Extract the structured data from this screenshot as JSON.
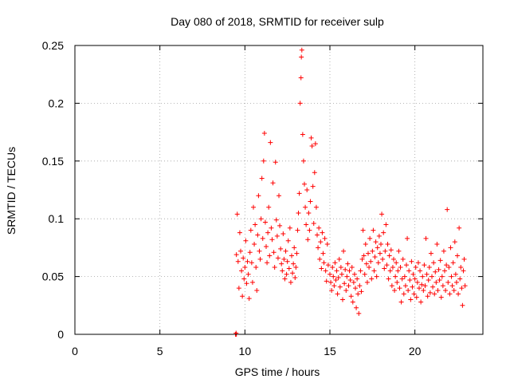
{
  "chart_data": {
    "type": "scatter",
    "title": "Day 080 of 2018, SRMTID for receiver sulp",
    "xlabel": "GPS time / hours",
    "ylabel": "SRMTID / TECUs",
    "xlim": [
      0,
      24
    ],
    "ylim": [
      0,
      0.25
    ],
    "xticks": [
      0,
      5,
      10,
      15,
      20
    ],
    "yticks": [
      0,
      0.05,
      0.1,
      0.15,
      0.2,
      0.25
    ],
    "xtick_labels": [
      "0",
      "5",
      "10",
      "15",
      "20"
    ],
    "ytick_labels": [
      "0",
      "0.05",
      "0.1",
      "0.15",
      "0.2",
      "0.25"
    ],
    "grid": true,
    "marker": "+",
    "series": [
      {
        "name": "SRMTID",
        "color": "#ff0000",
        "points": [
          [
            9.45,
            0.0
          ],
          [
            9.48,
            0.001
          ],
          [
            9.5,
            0.0
          ],
          [
            9.5,
            0.069
          ],
          [
            9.55,
            0.104
          ],
          [
            9.6,
            0.063
          ],
          [
            9.65,
            0.04
          ],
          [
            9.7,
            0.088
          ],
          [
            9.75,
            0.072
          ],
          [
            9.8,
            0.055
          ],
          [
            9.85,
            0.033
          ],
          [
            9.9,
            0.066
          ],
          [
            9.95,
            0.048
          ],
          [
            10.0,
            0.058
          ],
          [
            10.05,
            0.081
          ],
          [
            10.1,
            0.044
          ],
          [
            10.15,
            0.063
          ],
          [
            10.2,
            0.052
          ],
          [
            10.25,
            0.031
          ],
          [
            10.3,
            0.071
          ],
          [
            10.35,
            0.09
          ],
          [
            10.4,
            0.062
          ],
          [
            10.45,
            0.045
          ],
          [
            10.5,
            0.11
          ],
          [
            10.55,
            0.078
          ],
          [
            10.6,
            0.095
          ],
          [
            10.65,
            0.058
          ],
          [
            10.7,
            0.038
          ],
          [
            10.75,
            0.086
          ],
          [
            10.8,
            0.12
          ],
          [
            10.85,
            0.072
          ],
          [
            10.9,
            0.065
          ],
          [
            10.95,
            0.1
          ],
          [
            11.0,
            0.135
          ],
          [
            11.05,
            0.083
          ],
          [
            11.1,
            0.15
          ],
          [
            11.15,
            0.174
          ],
          [
            11.2,
            0.097
          ],
          [
            11.25,
            0.076
          ],
          [
            11.3,
            0.062
          ],
          [
            11.35,
            0.088
          ],
          [
            11.4,
            0.11
          ],
          [
            11.45,
            0.068
          ],
          [
            11.5,
            0.166
          ],
          [
            11.55,
            0.092
          ],
          [
            11.6,
            0.082
          ],
          [
            11.65,
            0.131
          ],
          [
            11.7,
            0.071
          ],
          [
            11.75,
            0.058
          ],
          [
            11.8,
            0.149
          ],
          [
            11.85,
            0.099
          ],
          [
            11.9,
            0.085
          ],
          [
            11.95,
            0.066
          ],
          [
            12.0,
            0.12
          ],
          [
            12.05,
            0.094
          ],
          [
            12.1,
            0.074
          ],
          [
            12.15,
            0.061
          ],
          [
            12.2,
            0.055
          ],
          [
            12.25,
            0.087
          ],
          [
            12.3,
            0.065
          ],
          [
            12.35,
            0.048
          ],
          [
            12.4,
            0.072
          ],
          [
            12.45,
            0.052
          ],
          [
            12.5,
            0.063
          ],
          [
            12.55,
            0.081
          ],
          [
            12.6,
            0.057
          ],
          [
            12.65,
            0.092
          ],
          [
            12.7,
            0.045
          ],
          [
            12.75,
            0.068
          ],
          [
            12.8,
            0.053
          ],
          [
            12.85,
            0.061
          ],
          [
            12.9,
            0.075
          ],
          [
            12.95,
            0.049
          ],
          [
            13.0,
            0.058
          ],
          [
            13.05,
            0.07
          ],
          [
            13.1,
            0.09
          ],
          [
            13.15,
            0.105
          ],
          [
            13.2,
            0.122
          ],
          [
            13.25,
            0.2
          ],
          [
            13.3,
            0.222
          ],
          [
            13.32,
            0.24
          ],
          [
            13.35,
            0.246
          ],
          [
            13.4,
            0.173
          ],
          [
            13.45,
            0.15
          ],
          [
            13.5,
            0.13
          ],
          [
            13.55,
            0.11
          ],
          [
            13.6,
            0.095
          ],
          [
            13.65,
            0.125
          ],
          [
            13.7,
            0.082
          ],
          [
            13.75,
            0.105
          ],
          [
            13.8,
            0.09
          ],
          [
            13.85,
            0.115
          ],
          [
            13.9,
            0.17
          ],
          [
            13.95,
            0.163
          ],
          [
            14.0,
            0.128
          ],
          [
            14.05,
            0.096
          ],
          [
            14.1,
            0.14
          ],
          [
            14.15,
            0.165
          ],
          [
            14.2,
            0.11
          ],
          [
            14.25,
            0.086
          ],
          [
            14.3,
            0.075
          ],
          [
            14.35,
            0.092
          ],
          [
            14.4,
            0.065
          ],
          [
            14.45,
            0.08
          ],
          [
            14.5,
            0.057
          ],
          [
            14.55,
            0.088
          ],
          [
            14.6,
            0.07
          ],
          [
            14.65,
            0.062
          ],
          [
            14.7,
            0.083
          ],
          [
            14.75,
            0.055
          ],
          [
            14.8,
            0.046
          ],
          [
            14.85,
            0.078
          ],
          [
            14.9,
            0.06
          ],
          [
            15.0,
            0.052
          ],
          [
            15.05,
            0.045
          ],
          [
            15.1,
            0.038
          ],
          [
            15.15,
            0.058
          ],
          [
            15.2,
            0.05
          ],
          [
            15.25,
            0.042
          ],
          [
            15.3,
            0.062
          ],
          [
            15.35,
            0.047
          ],
          [
            15.4,
            0.055
          ],
          [
            15.45,
            0.035
          ],
          [
            15.5,
            0.049
          ],
          [
            15.55,
            0.065
          ],
          [
            15.6,
            0.041
          ],
          [
            15.65,
            0.058
          ],
          [
            15.7,
            0.052
          ],
          [
            15.75,
            0.03
          ],
          [
            15.8,
            0.072
          ],
          [
            15.85,
            0.044
          ],
          [
            15.9,
            0.056
          ],
          [
            15.95,
            0.038
          ],
          [
            16.0,
            0.05
          ],
          [
            16.05,
            0.061
          ],
          [
            16.1,
            0.042
          ],
          [
            16.15,
            0.055
          ],
          [
            16.2,
            0.047
          ],
          [
            16.25,
            0.033
          ],
          [
            16.3,
            0.058
          ],
          [
            16.35,
            0.028
          ],
          [
            16.4,
            0.045
          ],
          [
            16.45,
            0.052
          ],
          [
            16.5,
            0.04
          ],
          [
            16.55,
            0.023
          ],
          [
            16.6,
            0.048
          ],
          [
            16.65,
            0.035
          ],
          [
            16.7,
            0.018
          ],
          [
            16.75,
            0.042
          ],
          [
            16.8,
            0.055
          ],
          [
            16.85,
            0.037
          ],
          [
            16.9,
            0.065
          ],
          [
            16.95,
            0.09
          ],
          [
            17.0,
            0.068
          ],
          [
            17.05,
            0.052
          ],
          [
            17.1,
            0.078
          ],
          [
            17.15,
            0.061
          ],
          [
            17.2,
            0.045
          ],
          [
            17.25,
            0.07
          ],
          [
            17.3,
            0.058
          ],
          [
            17.35,
            0.083
          ],
          [
            17.4,
            0.063
          ],
          [
            17.45,
            0.048
          ],
          [
            17.5,
            0.072
          ],
          [
            17.55,
            0.09
          ],
          [
            17.6,
            0.055
          ],
          [
            17.65,
            0.067
          ],
          [
            17.7,
            0.08
          ],
          [
            17.75,
            0.05
          ],
          [
            17.8,
            0.075
          ],
          [
            17.85,
            0.062
          ],
          [
            17.9,
            0.085
          ],
          [
            17.95,
            0.07
          ],
          [
            18.0,
            0.078
          ],
          [
            18.05,
            0.104
          ],
          [
            18.1,
            0.065
          ],
          [
            18.15,
            0.088
          ],
          [
            18.2,
            0.057
          ],
          [
            18.25,
            0.072
          ],
          [
            18.3,
            0.095
          ],
          [
            18.35,
            0.06
          ],
          [
            18.4,
            0.078
          ],
          [
            18.45,
            0.048
          ],
          [
            18.5,
            0.068
          ],
          [
            18.55,
            0.055
          ],
          [
            18.6,
            0.073
          ],
          [
            18.65,
            0.042
          ],
          [
            18.7,
            0.058
          ],
          [
            18.75,
            0.065
          ],
          [
            18.8,
            0.038
          ],
          [
            18.85,
            0.05
          ],
          [
            18.9,
            0.062
          ],
          [
            18.95,
            0.045
          ],
          [
            19.0,
            0.055
          ],
          [
            19.05,
            0.072
          ],
          [
            19.1,
            0.04
          ],
          [
            19.15,
            0.058
          ],
          [
            19.2,
            0.028
          ],
          [
            19.25,
            0.048
          ],
          [
            19.3,
            0.065
          ],
          [
            19.35,
            0.035
          ],
          [
            19.4,
            0.05
          ],
          [
            19.45,
            0.042
          ],
          [
            19.5,
            0.06
          ],
          [
            19.55,
            0.083
          ],
          [
            19.6,
            0.038
          ],
          [
            19.65,
            0.055
          ],
          [
            19.7,
            0.047
          ],
          [
            19.75,
            0.03
          ],
          [
            19.8,
            0.063
          ],
          [
            19.85,
            0.041
          ],
          [
            19.9,
            0.052
          ],
          [
            19.95,
            0.035
          ],
          [
            20.0,
            0.048
          ],
          [
            20.05,
            0.058
          ],
          [
            20.1,
            0.032
          ],
          [
            20.15,
            0.045
          ],
          [
            20.2,
            0.062
          ],
          [
            20.25,
            0.04
          ],
          [
            20.3,
            0.055
          ],
          [
            20.35,
            0.028
          ],
          [
            20.4,
            0.043
          ],
          [
            20.45,
            0.05
          ],
          [
            20.5,
            0.038
          ],
          [
            20.55,
            0.06
          ],
          [
            20.6,
            0.042
          ],
          [
            20.65,
            0.083
          ],
          [
            20.7,
            0.052
          ],
          [
            20.75,
            0.033
          ],
          [
            20.8,
            0.047
          ],
          [
            20.85,
            0.058
          ],
          [
            20.9,
            0.036
          ],
          [
            20.95,
            0.07
          ],
          [
            21.0,
            0.05
          ],
          [
            21.05,
            0.041
          ],
          [
            21.1,
            0.062
          ],
          [
            21.15,
            0.035
          ],
          [
            21.2,
            0.054
          ],
          [
            21.25,
            0.045
          ],
          [
            21.3,
            0.078
          ],
          [
            21.35,
            0.038
          ],
          [
            21.4,
            0.056
          ],
          [
            21.45,
            0.047
          ],
          [
            21.5,
            0.064
          ],
          [
            21.55,
            0.032
          ],
          [
            21.6,
            0.05
          ],
          [
            21.65,
            0.042
          ],
          [
            21.7,
            0.072
          ],
          [
            21.75,
            0.055
          ],
          [
            21.8,
            0.038
          ],
          [
            21.85,
            0.06
          ],
          [
            21.9,
            0.108
          ],
          [
            21.95,
            0.045
          ],
          [
            22.0,
            0.058
          ],
          [
            22.05,
            0.035
          ],
          [
            22.1,
            0.075
          ],
          [
            22.15,
            0.05
          ],
          [
            22.2,
            0.042
          ],
          [
            22.25,
            0.062
          ],
          [
            22.3,
            0.038
          ],
          [
            22.35,
            0.08
          ],
          [
            22.4,
            0.052
          ],
          [
            22.45,
            0.045
          ],
          [
            22.5,
            0.068
          ],
          [
            22.55,
            0.035
          ],
          [
            22.6,
            0.092
          ],
          [
            22.65,
            0.048
          ],
          [
            22.7,
            0.058
          ],
          [
            22.75,
            0.04
          ],
          [
            22.8,
            0.025
          ],
          [
            22.85,
            0.055
          ],
          [
            22.9,
            0.065
          ],
          [
            22.95,
            0.042
          ]
        ]
      }
    ]
  }
}
